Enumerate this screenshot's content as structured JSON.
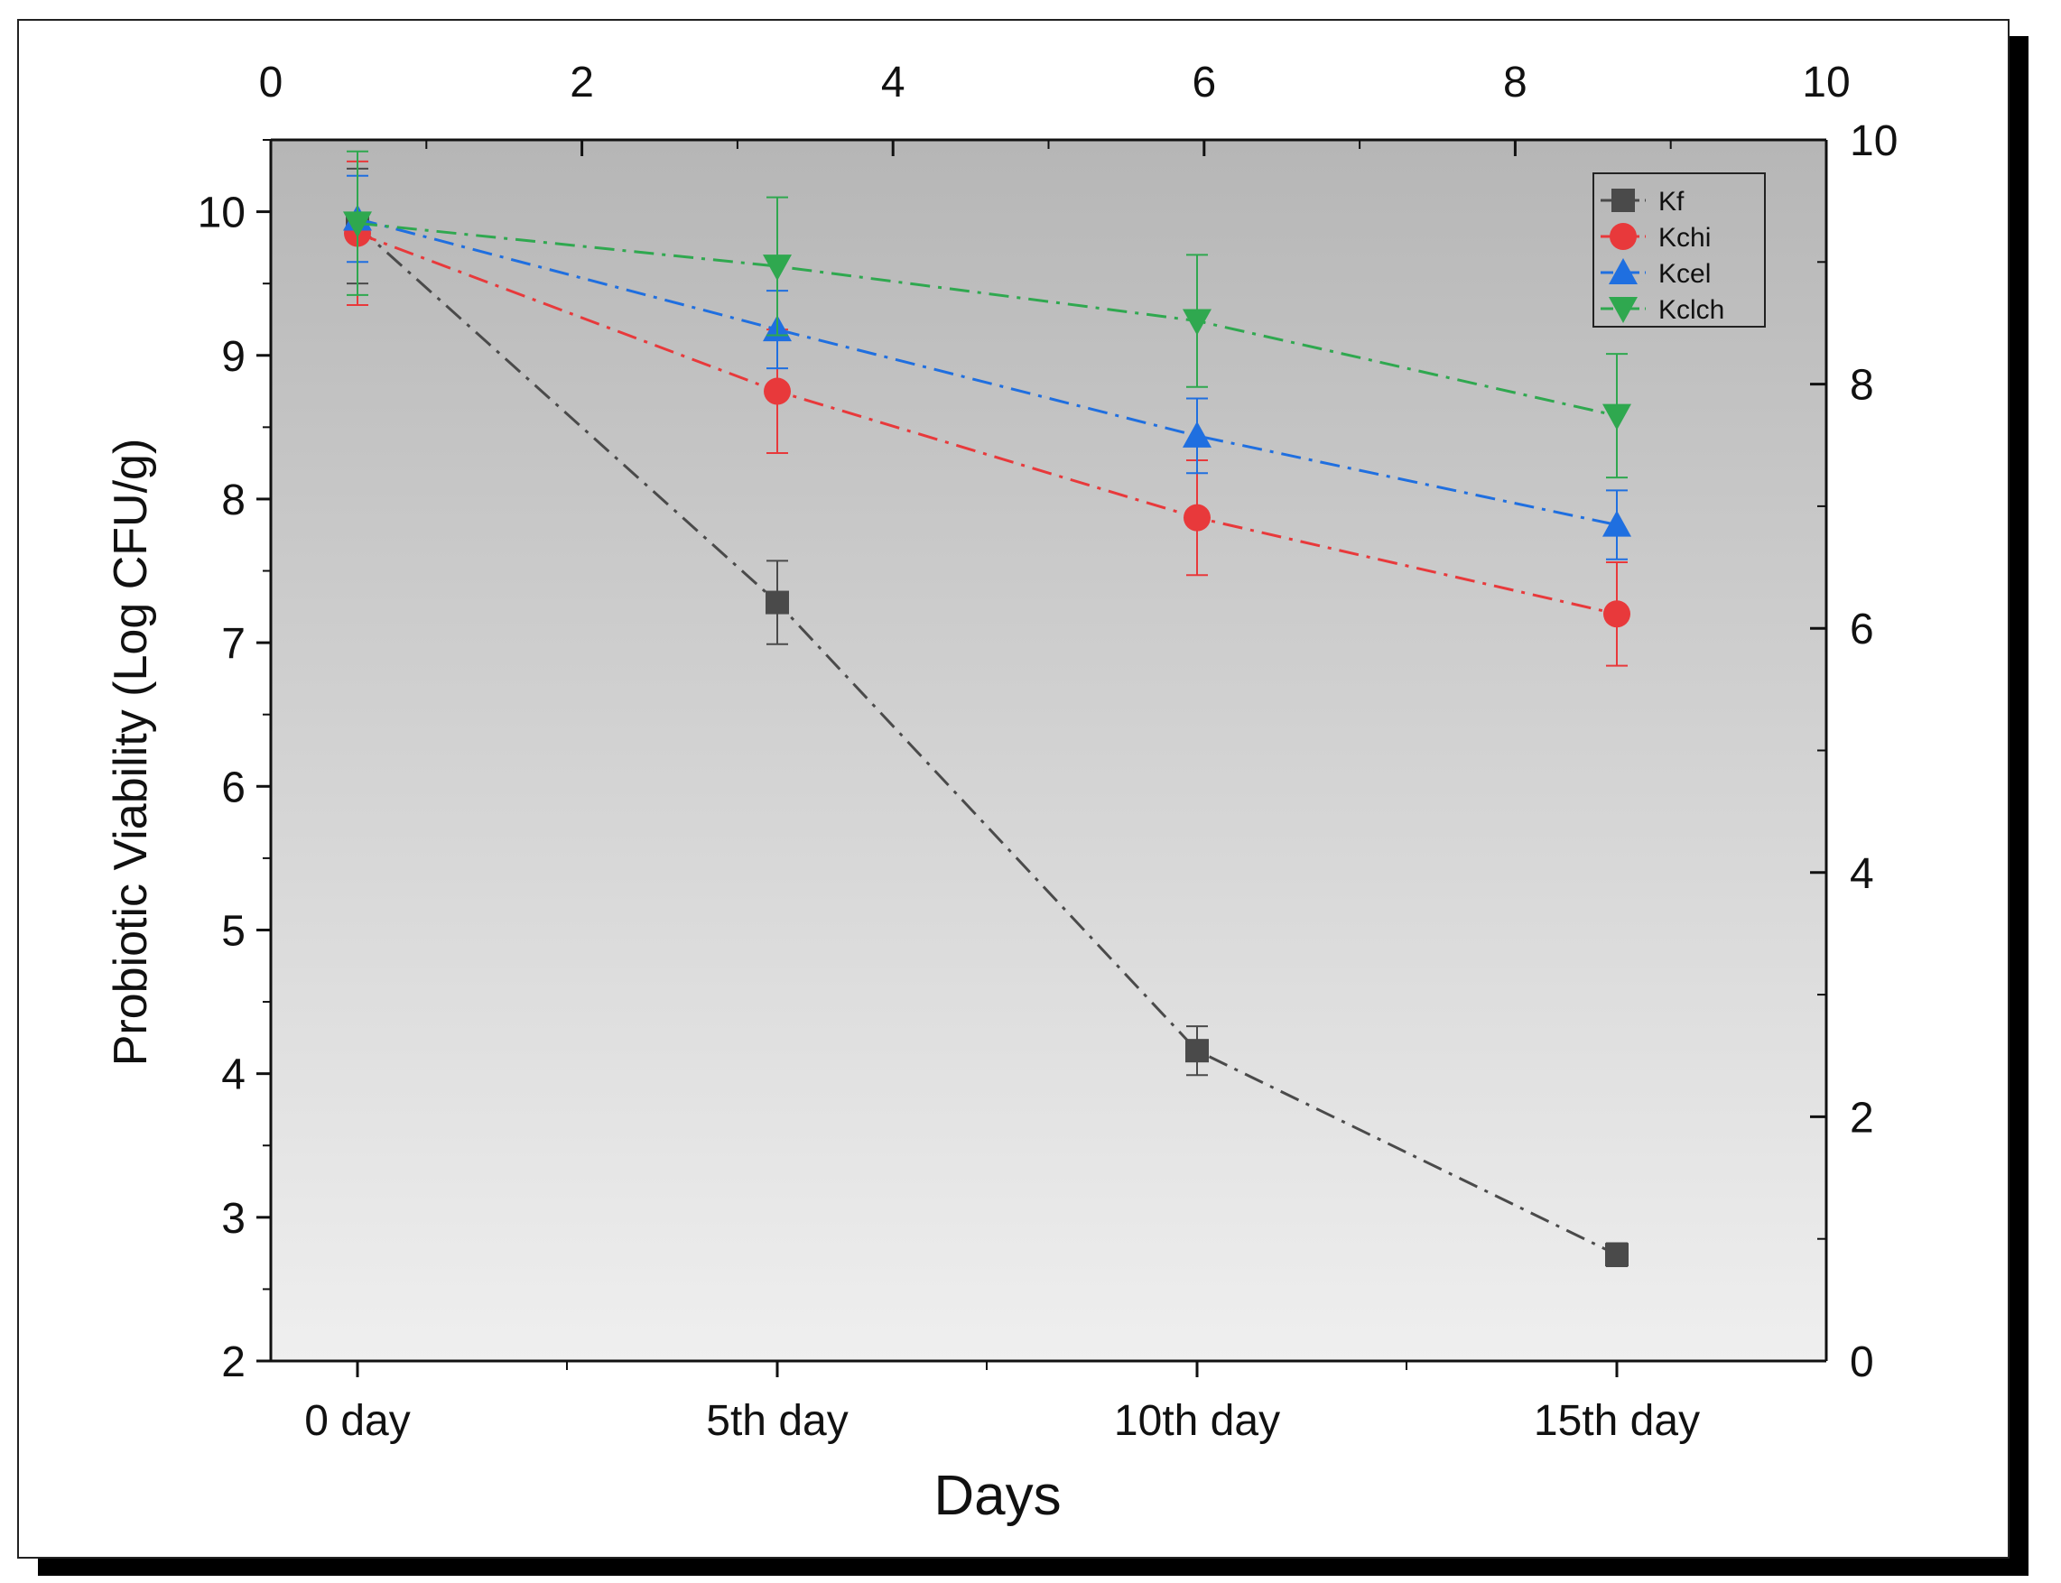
{
  "chart_data": {
    "type": "line",
    "title": "",
    "xlabel": "Days",
    "ylabel": "Probiotic Viability (Log CFU/g)",
    "categories": [
      "0 day",
      "5th day",
      "10th day",
      "15th day"
    ],
    "ylim": [
      2,
      10.5
    ],
    "yticks": [
      2,
      3,
      4,
      5,
      6,
      7,
      8,
      9,
      10
    ],
    "top_axis": {
      "range": [
        0,
        10
      ],
      "ticks": [
        0,
        2,
        4,
        6,
        8,
        10
      ]
    },
    "right_axis": {
      "range": [
        0,
        10
      ],
      "ticks": [
        0,
        2,
        4,
        6,
        8,
        10
      ]
    },
    "legend_position": "top-right",
    "background": "vertical gradient, dark grey top to light grey bottom",
    "series": [
      {
        "name": "Kf",
        "color": "#4a4a4a",
        "marker": "square",
        "values": [
          9.9,
          7.28,
          4.16,
          2.74
        ],
        "errors": [
          0.4,
          0.29,
          0.17,
          0.08
        ]
      },
      {
        "name": "Kchi",
        "color": "#e8393b",
        "marker": "circle",
        "values": [
          9.85,
          8.75,
          7.87,
          7.2
        ],
        "errors": [
          0.5,
          0.43,
          0.4,
          0.36
        ]
      },
      {
        "name": "Kcel",
        "color": "#1f6fe0",
        "marker": "triangle-up",
        "values": [
          9.95,
          9.18,
          8.44,
          7.82
        ],
        "errors": [
          0.3,
          0.27,
          0.26,
          0.24
        ]
      },
      {
        "name": "Kclch",
        "color": "#2fa84f",
        "marker": "triangle-down",
        "values": [
          9.92,
          9.62,
          9.24,
          8.58
        ],
        "errors": [
          0.5,
          0.48,
          0.46,
          0.43
        ]
      }
    ]
  }
}
